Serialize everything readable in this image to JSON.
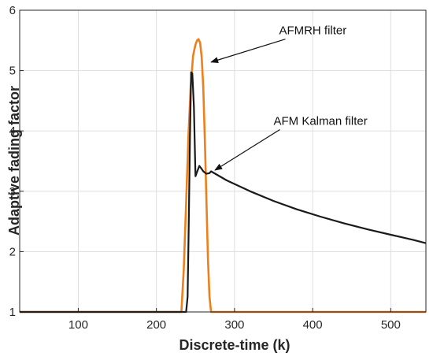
{
  "chart_data": {
    "type": "line",
    "title": "",
    "xlabel": "Discrete-time (k)",
    "ylabel": "Adaptive fading factor",
    "xlim": [
      25,
      545
    ],
    "ylim": [
      1,
      6
    ],
    "xticks": [
      100,
      200,
      300,
      400,
      500
    ],
    "yticks": [
      1,
      2,
      3,
      4,
      5,
      6
    ],
    "grid": true,
    "legend": "none",
    "series": [
      {
        "name": "AFMRH filter",
        "color": "#ef7f1a",
        "x": [
          25,
          232,
          235,
          238,
          241,
          244,
          247,
          250,
          252,
          254,
          256,
          258,
          260,
          262,
          264,
          266,
          268,
          270,
          545
        ],
        "y": [
          1,
          1,
          1.7,
          2.8,
          3.9,
          4.75,
          5.25,
          5.43,
          5.5,
          5.52,
          5.46,
          5.22,
          4.72,
          3.85,
          2.85,
          1.9,
          1.25,
          1,
          1
        ]
      },
      {
        "name": "AFM Kalman filter",
        "color": "#1a1a1a",
        "x": [
          25,
          238,
          240,
          241.5,
          243,
          244.5,
          246,
          248,
          250,
          252,
          255,
          258,
          260,
          264,
          268,
          270,
          290,
          320,
          350,
          380,
          410,
          440,
          470,
          500,
          530,
          545
        ],
        "y": [
          1,
          1,
          1.25,
          2.5,
          3.9,
          4.97,
          4.95,
          4.4,
          3.25,
          3.32,
          3.42,
          3.37,
          3.33,
          3.29,
          3.3,
          3.33,
          3.18,
          3.0,
          2.84,
          2.7,
          2.58,
          2.47,
          2.37,
          2.28,
          2.19,
          2.14
        ]
      }
    ],
    "annotations": [
      {
        "text": "AFMRH filter",
        "x": 357,
        "y": 5.6,
        "target_x": 270,
        "target_y": 5.14
      },
      {
        "text": "AFM Kalman filter",
        "x": 350,
        "y": 4.1,
        "target_x": 275,
        "target_y": 3.35
      }
    ]
  }
}
